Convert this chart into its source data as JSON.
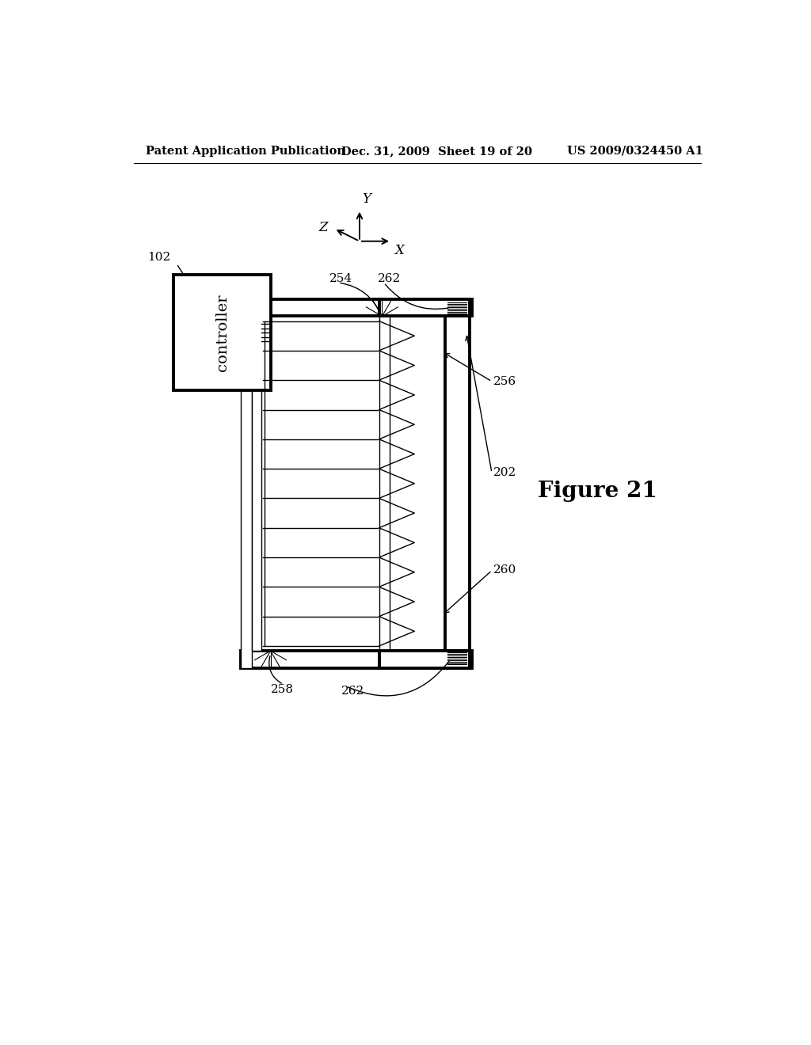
{
  "bg_color": "#ffffff",
  "header_left": "Patent Application Publication",
  "header_mid": "Dec. 31, 2009  Sheet 19 of 20",
  "header_right": "US 2009/0324450 A1",
  "figure_label": "Figure 21",
  "label_102": "102",
  "label_254": "254",
  "label_262_top": "262",
  "label_256": "256",
  "label_202": "202",
  "label_260": "260",
  "label_258": "258",
  "label_262_bot": "262",
  "controller_text": "controller"
}
